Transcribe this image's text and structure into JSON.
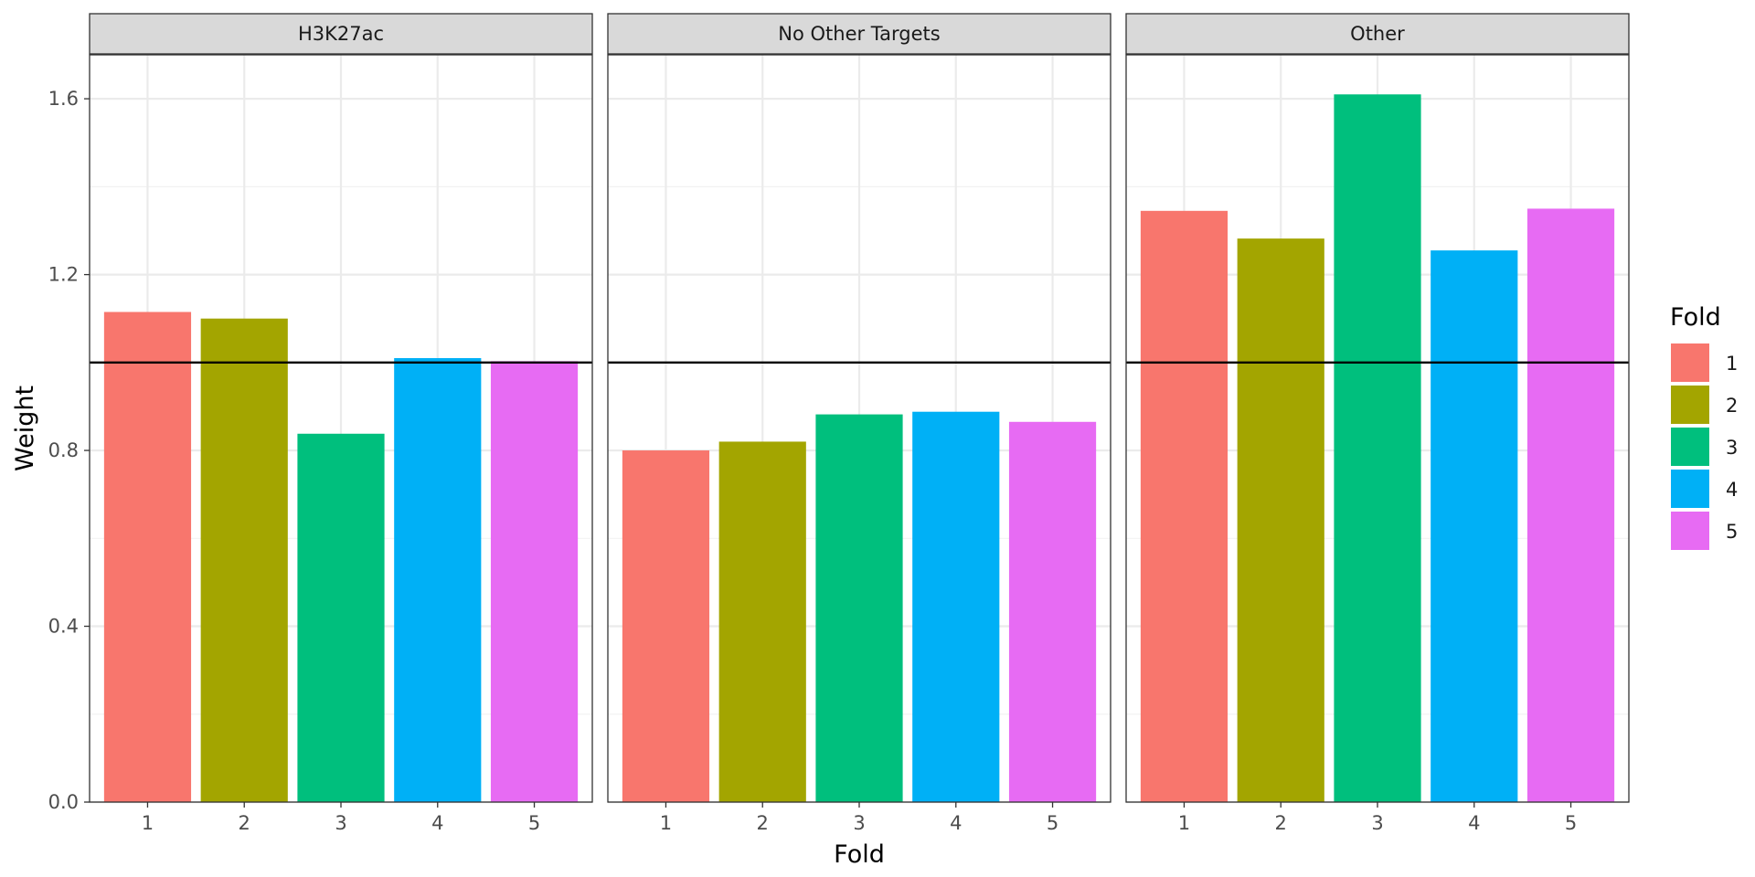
{
  "chart_data": {
    "type": "bar",
    "facet_variable": "Target",
    "facets": [
      {
        "label": "H3K27ac",
        "values": [
          1.115,
          1.1,
          0.838,
          1.01,
          1.003
        ]
      },
      {
        "label": "No Other Targets",
        "values": [
          0.8,
          0.82,
          0.882,
          0.888,
          0.865
        ]
      },
      {
        "label": "Other",
        "values": [
          1.345,
          1.282,
          1.61,
          1.255,
          1.35
        ]
      }
    ],
    "categories": [
      "1",
      "2",
      "3",
      "4",
      "5"
    ],
    "reference_line": 1.0,
    "xlabel": "Fold",
    "ylabel": "Weight",
    "ylim": [
      0,
      1.7
    ],
    "yticks": [
      "0.0",
      "0.4",
      "0.8",
      "1.2",
      "1.6"
    ],
    "grid": true,
    "legend": {
      "title": "Fold",
      "position": "right",
      "entries": [
        "1",
        "2",
        "3",
        "4",
        "5"
      ]
    },
    "colors": [
      "#F8766D",
      "#A3A500",
      "#00BF7D",
      "#00B0F6",
      "#E76BF3"
    ]
  }
}
